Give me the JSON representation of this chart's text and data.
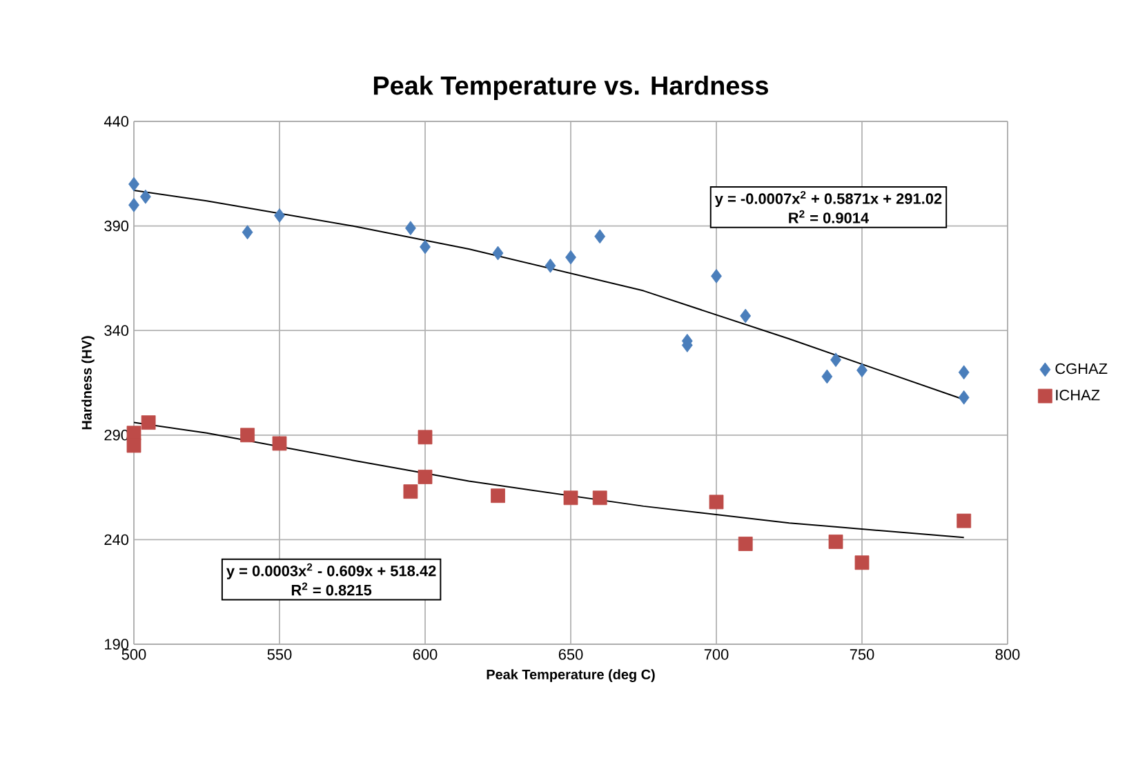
{
  "chart_data": {
    "type": "scatter",
    "title": "Peak Temperature vs. Hardness",
    "xlabel": "Peak Temperature (deg C)",
    "ylabel": "Hardness (HV)",
    "xlim": [
      500,
      800
    ],
    "xticks": [
      500,
      550,
      600,
      650,
      700,
      750,
      800
    ],
    "ylim": [
      190,
      440
    ],
    "yticks": [
      190,
      240,
      290,
      340,
      390,
      440
    ],
    "grid": true,
    "legend": "right",
    "series": [
      {
        "name": "CGHAZ",
        "color": "#4a7ebb",
        "marker": "diamond",
        "x": [
          500,
          500,
          504,
          539,
          550,
          595,
          600,
          625,
          643,
          650,
          660,
          690,
          690,
          700,
          710,
          738,
          741,
          750,
          785,
          785
        ],
        "values": [
          410,
          400,
          404,
          387,
          395,
          389,
          380,
          377,
          371,
          375,
          385,
          333,
          335,
          366,
          347,
          318,
          326,
          321,
          320,
          308
        ]
      },
      {
        "name": "ICHAZ",
        "color": "#be4b48",
        "marker": "square",
        "x": [
          500,
          500,
          505,
          539,
          550,
          595,
          600,
          600,
          625,
          650,
          660,
          700,
          710,
          741,
          750,
          785
        ],
        "values": [
          291,
          285,
          296,
          290,
          286,
          263,
          289,
          270,
          261,
          260,
          260,
          258,
          238,
          239,
          229,
          249
        ]
      },
      {
        "type": "line",
        "color": "#000000",
        "marker": "none",
        "x": [
          500,
          525,
          575,
          615,
          675,
          725,
          785
        ],
        "values": [
          407,
          402,
          390,
          379,
          359,
          336,
          307
        ]
      },
      {
        "type": "line",
        "color": "#000000",
        "marker": "none",
        "x": [
          500,
          525,
          575,
          615,
          675,
          725,
          785
        ],
        "values": [
          296,
          291,
          278,
          268,
          256,
          248,
          241
        ]
      }
    ],
    "annotations": [
      "y = -0.0007x$^{2}$ + 0.5871x + 291.02",
      "R$^{2}$ = 0.9014",
      "y = 0.0003x$^{2}$ - 0.609x + 518.42",
      "R$^{2}$ = 0.8215"
    ]
  }
}
